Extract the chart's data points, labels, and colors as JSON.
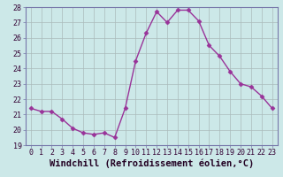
{
  "x": [
    0,
    1,
    2,
    3,
    4,
    5,
    6,
    7,
    8,
    9,
    10,
    11,
    12,
    13,
    14,
    15,
    16,
    17,
    18,
    19,
    20,
    21,
    22,
    23
  ],
  "y": [
    21.4,
    21.2,
    21.2,
    20.7,
    20.1,
    19.8,
    19.7,
    19.8,
    19.5,
    21.4,
    24.5,
    26.3,
    27.7,
    27.0,
    27.8,
    27.8,
    27.1,
    25.5,
    24.8,
    23.8,
    23.0,
    22.8,
    22.2,
    21.4
  ],
  "line_color": "#993399",
  "marker": "D",
  "markersize": 2.5,
  "linewidth": 1.0,
  "xlabel": "Windchill (Refroidissement éolien,°C)",
  "xlabel_fontsize": 7.5,
  "ylim": [
    19,
    28
  ],
  "xlim_min": -0.5,
  "xlim_max": 23.5,
  "yticks": [
    19,
    20,
    21,
    22,
    23,
    24,
    25,
    26,
    27,
    28
  ],
  "xticks": [
    0,
    1,
    2,
    3,
    4,
    5,
    6,
    7,
    8,
    9,
    10,
    11,
    12,
    13,
    14,
    15,
    16,
    17,
    18,
    19,
    20,
    21,
    22,
    23
  ],
  "tick_fontsize": 6.0,
  "bg_color": "#cce8e8",
  "grid_color": "#aabbbb",
  "fig_bg": "#cce8e8",
  "spine_color": "#7777aa"
}
